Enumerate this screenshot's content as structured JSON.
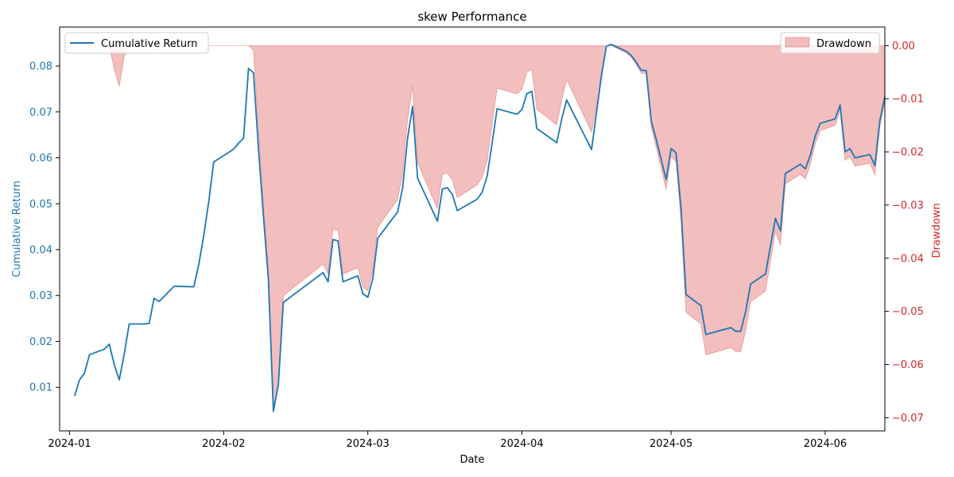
{
  "chart_data": {
    "type": "line",
    "title": "skew Performance",
    "xlabel": "Date",
    "ylabel_left": "Cumulative Return",
    "ylabel_right": "Drawdown",
    "xlim": [
      "2023-12-30",
      "2024-06-13"
    ],
    "x_ticks": [
      "2024-01",
      "2024-02",
      "2024-03",
      "2024-04",
      "2024-05",
      "2024-06"
    ],
    "x_tick_dates": [
      "2024-01-01",
      "2024-02-01",
      "2024-03-01",
      "2024-04-01",
      "2024-05-01",
      "2024-06-01"
    ],
    "ylim_left": [
      0.0005,
      0.0885
    ],
    "yticks_left": [
      0.01,
      0.02,
      0.03,
      0.04,
      0.05,
      0.06,
      0.07,
      0.08
    ],
    "ytick_labels_left": [
      "0.01",
      "0.02",
      "0.03",
      "0.04",
      "0.05",
      "0.06",
      "0.07",
      "0.08"
    ],
    "ylim_right": [
      -0.0725,
      0.0035
    ],
    "yticks_right": [
      0.0,
      -0.01,
      -0.02,
      -0.03,
      -0.04,
      -0.05,
      -0.06,
      -0.07
    ],
    "ytick_labels_right": [
      "0.00",
      "−0.01",
      "−0.02",
      "−0.03",
      "−0.04",
      "−0.05",
      "−0.06",
      "−0.07"
    ],
    "legend_left": {
      "label": "Cumulative Return",
      "placement": "top-left"
    },
    "legend_right": {
      "label": "Drawdown",
      "placement": "top-right"
    },
    "colors": {
      "line": "#1f77b4",
      "fill": "#d62728",
      "left_axis": "#1f77b4",
      "right_axis": "#d62728"
    },
    "series": [
      {
        "name": "Cumulative Return",
        "points": [
          [
            "2024-01-02",
            0.0081
          ],
          [
            "2024-01-03",
            0.0116
          ],
          [
            "2024-01-04",
            0.0131
          ],
          [
            "2024-01-05",
            0.0171
          ],
          [
            "2024-01-08",
            0.0183
          ],
          [
            "2024-01-09",
            0.0194
          ],
          [
            "2024-01-10",
            0.0149
          ],
          [
            "2024-01-11",
            0.0116
          ],
          [
            "2024-01-12",
            0.0173
          ],
          [
            "2024-01-13",
            0.0238
          ],
          [
            "2024-01-16",
            0.0238
          ],
          [
            "2024-01-17",
            0.0239
          ],
          [
            "2024-01-18",
            0.0294
          ],
          [
            "2024-01-19",
            0.0287
          ],
          [
            "2024-01-22",
            0.032
          ],
          [
            "2024-01-23",
            0.032
          ],
          [
            "2024-01-26",
            0.0319
          ],
          [
            "2024-01-27",
            0.0368
          ],
          [
            "2024-01-28",
            0.0431
          ],
          [
            "2024-01-29",
            0.0505
          ],
          [
            "2024-01-30",
            0.0591
          ],
          [
            "2024-02-03",
            0.0619
          ],
          [
            "2024-02-04",
            0.0632
          ],
          [
            "2024-02-05",
            0.0643
          ],
          [
            "2024-02-06",
            0.0795
          ],
          [
            "2024-02-07",
            0.0785
          ],
          [
            "2024-02-08",
            0.062
          ],
          [
            "2024-02-09",
            0.0472
          ],
          [
            "2024-02-10",
            0.0335
          ],
          [
            "2024-02-11",
            0.0048
          ],
          [
            "2024-02-12",
            0.0105
          ],
          [
            "2024-02-13",
            0.0285
          ],
          [
            "2024-02-21",
            0.035
          ],
          [
            "2024-02-22",
            0.033
          ],
          [
            "2024-02-23",
            0.0422
          ],
          [
            "2024-02-24",
            0.0419
          ],
          [
            "2024-02-25",
            0.033
          ],
          [
            "2024-02-28",
            0.0343
          ],
          [
            "2024-02-29",
            0.0304
          ],
          [
            "2024-03-01",
            0.0296
          ],
          [
            "2024-03-02",
            0.0337
          ],
          [
            "2024-03-03",
            0.0425
          ],
          [
            "2024-03-07",
            0.0482
          ],
          [
            "2024-03-08",
            0.0535
          ],
          [
            "2024-03-09",
            0.0643
          ],
          [
            "2024-03-10",
            0.0712
          ],
          [
            "2024-03-11",
            0.0556
          ],
          [
            "2024-03-15",
            0.0462
          ],
          [
            "2024-03-16",
            0.0532
          ],
          [
            "2024-03-17",
            0.0535
          ],
          [
            "2024-03-18",
            0.052
          ],
          [
            "2024-03-19",
            0.0485
          ],
          [
            "2024-03-23",
            0.051
          ],
          [
            "2024-03-24",
            0.0525
          ],
          [
            "2024-03-25",
            0.056
          ],
          [
            "2024-03-26",
            0.0632
          ],
          [
            "2024-03-27",
            0.0707
          ],
          [
            "2024-03-31",
            0.0695
          ],
          [
            "2024-04-01",
            0.0705
          ],
          [
            "2024-04-02",
            0.074
          ],
          [
            "2024-04-03",
            0.0745
          ],
          [
            "2024-04-04",
            0.0664
          ],
          [
            "2024-04-08",
            0.0633
          ],
          [
            "2024-04-09",
            0.0685
          ],
          [
            "2024-04-10",
            0.0726
          ],
          [
            "2024-04-15",
            0.0618
          ],
          [
            "2024-04-17",
            0.078
          ],
          [
            "2024-04-18",
            0.0843
          ],
          [
            "2024-04-19",
            0.0847
          ],
          [
            "2024-04-22",
            0.0832
          ],
          [
            "2024-04-23",
            0.0823
          ],
          [
            "2024-04-24",
            0.0808
          ],
          [
            "2024-04-25",
            0.0791
          ],
          [
            "2024-04-26",
            0.079
          ],
          [
            "2024-04-27",
            0.0681
          ],
          [
            "2024-04-28",
            0.064
          ],
          [
            "2024-04-30",
            0.0553
          ],
          [
            "2024-05-01",
            0.062
          ],
          [
            "2024-05-02",
            0.0611
          ],
          [
            "2024-05-03",
            0.049
          ],
          [
            "2024-05-04",
            0.0302
          ],
          [
            "2024-05-07",
            0.0278
          ],
          [
            "2024-05-08",
            0.0215
          ],
          [
            "2024-05-13",
            0.023
          ],
          [
            "2024-05-14",
            0.0222
          ],
          [
            "2024-05-15",
            0.0222
          ],
          [
            "2024-05-16",
            0.0265
          ],
          [
            "2024-05-17",
            0.0325
          ],
          [
            "2024-05-20",
            0.0347
          ],
          [
            "2024-05-22",
            0.0468
          ],
          [
            "2024-05-23",
            0.0441
          ],
          [
            "2024-05-24",
            0.0566
          ],
          [
            "2024-05-27",
            0.0586
          ],
          [
            "2024-05-28",
            0.0576
          ],
          [
            "2024-05-29",
            0.0605
          ],
          [
            "2024-05-30",
            0.0648
          ],
          [
            "2024-05-31",
            0.0675
          ],
          [
            "2024-06-03",
            0.0685
          ],
          [
            "2024-06-04",
            0.0715
          ],
          [
            "2024-06-05",
            0.0613
          ],
          [
            "2024-06-06",
            0.062
          ],
          [
            "2024-06-07",
            0.06
          ],
          [
            "2024-06-10",
            0.0607
          ],
          [
            "2024-06-11",
            0.0583
          ],
          [
            "2024-06-12",
            0.0681
          ],
          [
            "2024-06-13",
            0.0733
          ]
        ]
      },
      {
        "name": "Drawdown",
        "points": [
          [
            "2024-01-02",
            0.0
          ],
          [
            "2024-01-09",
            0.0
          ],
          [
            "2024-01-10",
            -0.0045
          ],
          [
            "2024-01-11",
            -0.0077
          ],
          [
            "2024-01-12",
            -0.002
          ],
          [
            "2024-01-13",
            0.0
          ],
          [
            "2024-01-18",
            0.0
          ],
          [
            "2024-01-19",
            -0.0007
          ],
          [
            "2024-01-20",
            0.0
          ],
          [
            "2024-02-05",
            0.0
          ],
          [
            "2024-02-06",
            0.0
          ],
          [
            "2024-02-07",
            -0.0009
          ],
          [
            "2024-02-08",
            -0.016
          ],
          [
            "2024-02-09",
            -0.03
          ],
          [
            "2024-02-10",
            -0.0427
          ],
          [
            "2024-02-11",
            -0.069
          ],
          [
            "2024-02-12",
            -0.0637
          ],
          [
            "2024-02-13",
            -0.0471
          ],
          [
            "2024-02-21",
            -0.0411
          ],
          [
            "2024-02-22",
            -0.043
          ],
          [
            "2024-02-23",
            -0.0345
          ],
          [
            "2024-02-24",
            -0.0348
          ],
          [
            "2024-02-25",
            -0.043
          ],
          [
            "2024-02-28",
            -0.0418
          ],
          [
            "2024-02-29",
            -0.0454
          ],
          [
            "2024-03-01",
            -0.0461
          ],
          [
            "2024-03-02",
            -0.0423
          ],
          [
            "2024-03-03",
            -0.0342
          ],
          [
            "2024-03-07",
            -0.0289
          ],
          [
            "2024-03-08",
            -0.024
          ],
          [
            "2024-03-09",
            -0.014
          ],
          [
            "2024-03-10",
            -0.0076
          ],
          [
            "2024-03-11",
            -0.022
          ],
          [
            "2024-03-15",
            -0.0307
          ],
          [
            "2024-03-16",
            -0.0242
          ],
          [
            "2024-03-17",
            -0.024
          ],
          [
            "2024-03-18",
            -0.0253
          ],
          [
            "2024-03-19",
            -0.0286
          ],
          [
            "2024-03-23",
            -0.0262
          ],
          [
            "2024-03-24",
            -0.0248
          ],
          [
            "2024-03-25",
            -0.0216
          ],
          [
            "2024-03-26",
            -0.0149
          ],
          [
            "2024-03-27",
            -0.008
          ],
          [
            "2024-03-31",
            -0.0091
          ],
          [
            "2024-04-01",
            -0.0082
          ],
          [
            "2024-04-02",
            -0.005
          ],
          [
            "2024-04-03",
            -0.0045
          ],
          [
            "2024-04-04",
            -0.012
          ],
          [
            "2024-04-08",
            -0.0149
          ],
          [
            "2024-04-09",
            -0.0102
          ],
          [
            "2024-04-10",
            -0.0064
          ],
          [
            "2024-04-15",
            -0.0163
          ],
          [
            "2024-04-17",
            -0.0062
          ],
          [
            "2024-04-18",
            0.0
          ],
          [
            "2024-04-19",
            0.0
          ],
          [
            "2024-04-22",
            -0.0014
          ],
          [
            "2024-04-23",
            -0.0022
          ],
          [
            "2024-04-24",
            -0.0036
          ],
          [
            "2024-04-25",
            -0.0052
          ],
          [
            "2024-04-26",
            -0.0053
          ],
          [
            "2024-04-27",
            -0.0153
          ],
          [
            "2024-04-28",
            -0.0191
          ],
          [
            "2024-04-30",
            -0.0271
          ],
          [
            "2024-05-01",
            -0.0209
          ],
          [
            "2024-05-02",
            -0.0218
          ],
          [
            "2024-05-03",
            -0.0329
          ],
          [
            "2024-05-04",
            -0.0502
          ],
          [
            "2024-05-07",
            -0.0524
          ],
          [
            "2024-05-08",
            -0.0582
          ],
          [
            "2024-05-13",
            -0.0568
          ],
          [
            "2024-05-14",
            -0.0576
          ],
          [
            "2024-05-15",
            -0.0576
          ],
          [
            "2024-05-16",
            -0.0537
          ],
          [
            "2024-05-17",
            -0.0482
          ],
          [
            "2024-05-20",
            -0.0462
          ],
          [
            "2024-05-22",
            -0.035
          ],
          [
            "2024-05-23",
            -0.0376
          ],
          [
            "2024-05-24",
            -0.026
          ],
          [
            "2024-05-27",
            -0.0242
          ],
          [
            "2024-05-28",
            -0.0251
          ],
          [
            "2024-05-29",
            -0.0224
          ],
          [
            "2024-05-30",
            -0.0185
          ],
          [
            "2024-05-31",
            -0.016
          ],
          [
            "2024-06-03",
            -0.015
          ],
          [
            "2024-06-04",
            -0.0122
          ],
          [
            "2024-06-05",
            -0.0216
          ],
          [
            "2024-06-06",
            -0.0209
          ],
          [
            "2024-06-07",
            -0.0227
          ],
          [
            "2024-06-10",
            -0.0221
          ],
          [
            "2024-06-11",
            -0.0243
          ],
          [
            "2024-06-12",
            -0.0153
          ],
          [
            "2024-06-13",
            -0.0105
          ]
        ]
      }
    ]
  }
}
